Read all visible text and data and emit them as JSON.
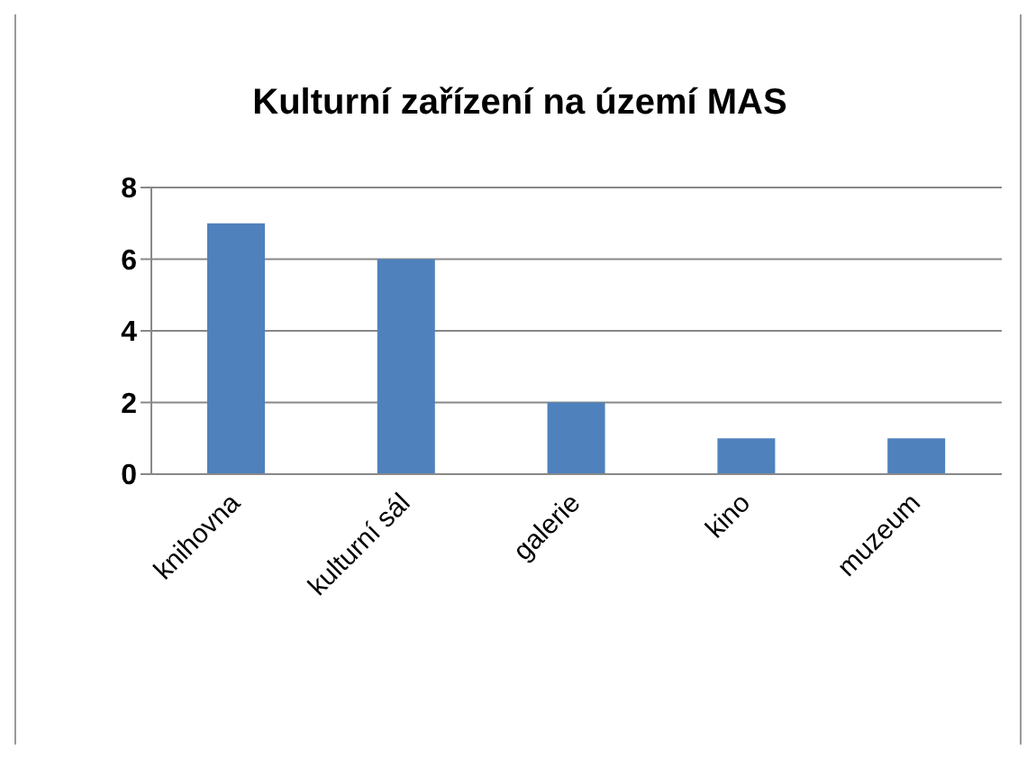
{
  "chart_data": {
    "type": "bar",
    "title": "Kulturní zařízení na území MAS",
    "categories": [
      "knihovna",
      "kulturní sál",
      "galerie",
      "kino",
      "muzeum"
    ],
    "values": [
      7,
      6,
      2,
      1,
      1
    ],
    "color": "#4f81bd",
    "ylim": [
      0,
      8
    ],
    "yticks": [
      0,
      2,
      4,
      6,
      8
    ],
    "grid": "y"
  }
}
